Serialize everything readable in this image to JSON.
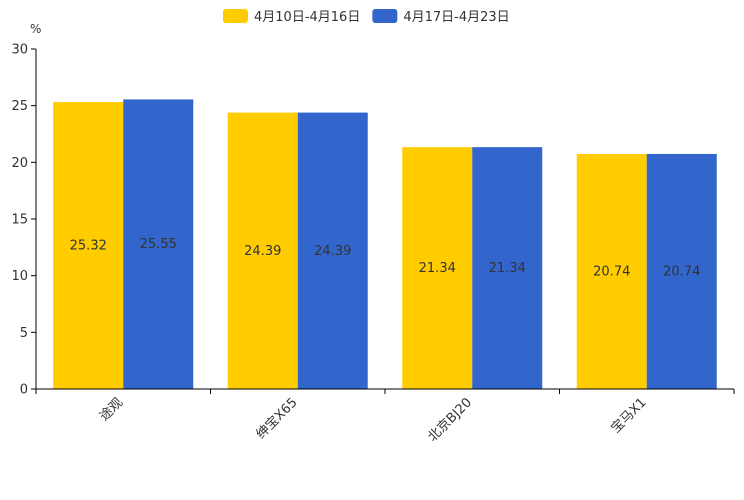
{
  "chart_data": {
    "type": "bar",
    "categories": [
      "途观",
      "绅宝X65",
      "北京BJ20",
      "宝马X1"
    ],
    "series": [
      {
        "name": "4月10日-4月16日",
        "values": [
          25.32,
          24.39,
          21.34,
          20.74
        ],
        "color": "#FFCC00"
      },
      {
        "name": "4月17日-4月23日",
        "values": [
          25.55,
          24.39,
          21.34,
          20.74
        ],
        "color": "#3366CC"
      }
    ],
    "data_labels": [
      [
        "25.32",
        "24.39",
        "21.34",
        "20.74"
      ],
      [
        "25.55",
        "24.39",
        "21.34",
        "20.74"
      ]
    ],
    "y_unit": "%",
    "ylim": [
      0,
      30
    ],
    "yticks": [
      "0",
      "5",
      "10",
      "15",
      "20",
      "25",
      "30"
    ],
    "legend_position": "top-center",
    "grid": false
  }
}
